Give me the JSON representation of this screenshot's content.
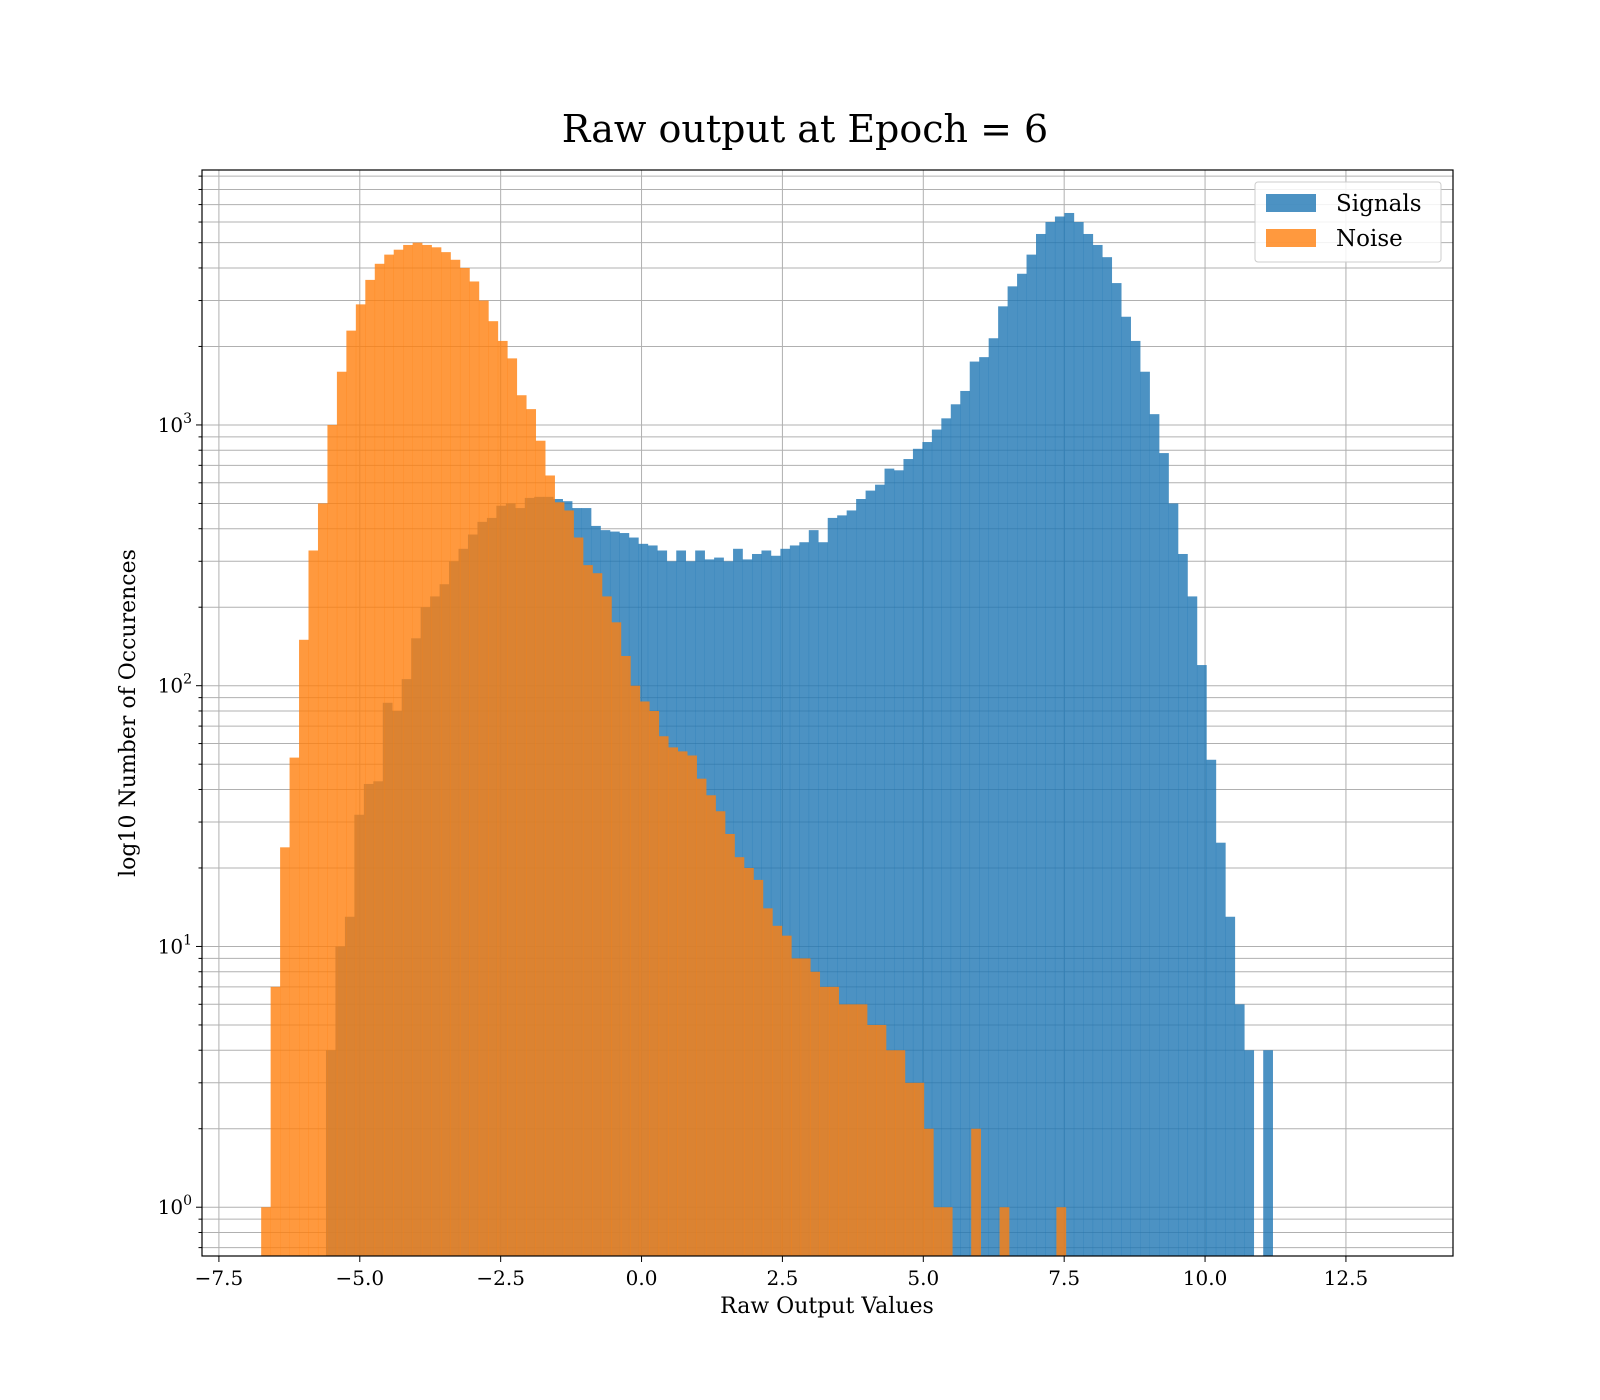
{
  "chart_data": {
    "type": "bar",
    "title": "Raw output at Epoch = 6",
    "xlabel": "Raw Output Values",
    "ylabel": "log10 Number of Occurences",
    "xscale": "linear",
    "yscale": "log",
    "xlim": [
      -7.8,
      14.4
    ],
    "ylim": [
      0.65,
      9500
    ],
    "grid": true,
    "legend_position": "top-right",
    "x_ticks": [
      -7.5,
      -5.0,
      -2.5,
      0.0,
      2.5,
      5.0,
      7.5,
      10.0,
      12.5
    ],
    "x_tick_labels": [
      "−7.5",
      "−5.0",
      "−2.5",
      "0.0",
      "2.5",
      "5.0",
      "7.5",
      "10.0",
      "12.5"
    ],
    "y_ticks": [
      1,
      10,
      100,
      1000
    ],
    "y_tick_labels": [
      {
        "base": "10",
        "exp": "0"
      },
      {
        "base": "10",
        "exp": "1"
      },
      {
        "base": "10",
        "exp": "2"
      },
      {
        "base": "10",
        "exp": "3"
      }
    ],
    "series": [
      {
        "name": "Signals",
        "color": "#1f77b4",
        "opacity": 0.8,
        "bin_start": -5.6,
        "bin_width": 0.168,
        "counts": [
          4,
          10,
          13,
          32,
          42,
          43,
          86,
          80,
          106,
          152,
          200,
          220,
          245,
          300,
          335,
          380,
          425,
          440,
          490,
          500,
          480,
          525,
          530,
          530,
          520,
          510,
          480,
          480,
          410,
          395,
          390,
          385,
          370,
          350,
          345,
          330,
          300,
          330,
          300,
          330,
          305,
          310,
          300,
          335,
          305,
          320,
          330,
          315,
          335,
          345,
          355,
          395,
          355,
          440,
          450,
          470,
          520,
          560,
          590,
          680,
          670,
          740,
          810,
          860,
          960,
          1060,
          1200,
          1350,
          1750,
          1820,
          2150,
          2850,
          3400,
          3800,
          4500,
          5400,
          6000,
          6300,
          6500,
          6000,
          5400,
          4900,
          4400,
          3500,
          2600,
          2100,
          1600,
          1100,
          780,
          500,
          320,
          220,
          120,
          52,
          25,
          13,
          6,
          4,
          0,
          4
        ]
      },
      {
        "name": "Noise",
        "color": "#ff7f0e",
        "opacity": 0.8,
        "bin_start": -6.75,
        "bin_width": 0.168,
        "counts": [
          1,
          7,
          24,
          53,
          150,
          330,
          500,
          1000,
          1600,
          2300,
          2900,
          3600,
          4150,
          4500,
          4700,
          4900,
          5000,
          4900,
          4800,
          4600,
          4300,
          4000,
          3550,
          3000,
          2500,
          2100,
          1800,
          1300,
          1150,
          870,
          640,
          505,
          470,
          370,
          290,
          270,
          220,
          175,
          130,
          100,
          87,
          80,
          64,
          58,
          56,
          54,
          44,
          38,
          33,
          27,
          22,
          20,
          18,
          14,
          12,
          11,
          9,
          9,
          8,
          7,
          7,
          6,
          6,
          6,
          5,
          5,
          4,
          4,
          3,
          3,
          2,
          1,
          1,
          0,
          0,
          2,
          0,
          0,
          1,
          0,
          0,
          0,
          0,
          0,
          1,
          0,
          0
        ]
      }
    ]
  }
}
